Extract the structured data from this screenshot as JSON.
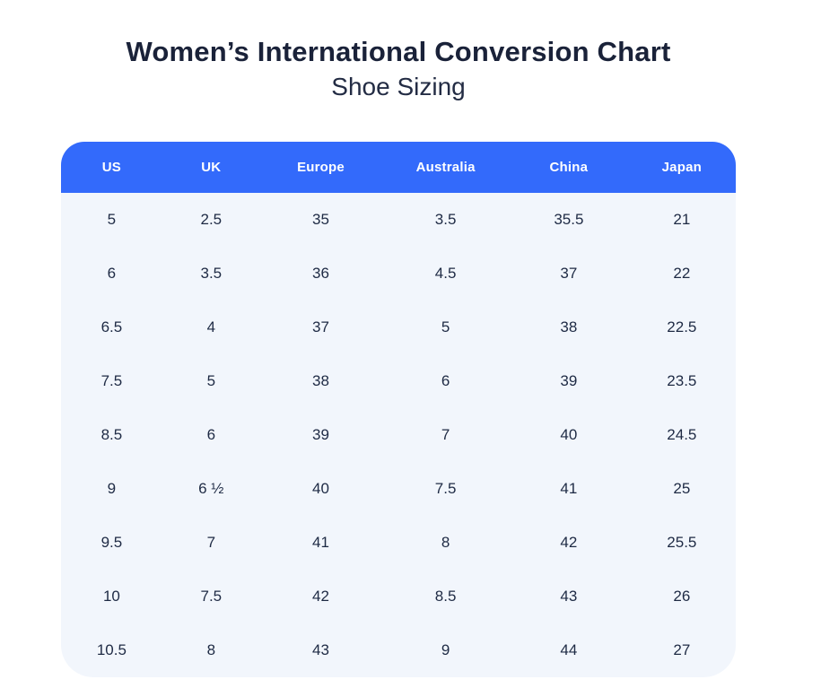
{
  "page": {
    "title": "Women’s International Conversion Chart",
    "subtitle": "Shoe Sizing"
  },
  "chart_data": {
    "type": "table",
    "title": "Women’s International Conversion Chart",
    "subtitle": "Shoe Sizing",
    "columns": [
      "US",
      "UK",
      "Europe",
      "Australia",
      "China",
      "Japan"
    ],
    "rows": [
      [
        "5",
        "2.5",
        "35",
        "3.5",
        "35.5",
        "21"
      ],
      [
        "6",
        "3.5",
        "36",
        "4.5",
        "37",
        "22"
      ],
      [
        "6.5",
        "4",
        "37",
        "5",
        "38",
        "22.5"
      ],
      [
        "7.5",
        "5",
        "38",
        "6",
        "39",
        "23.5"
      ],
      [
        "8.5",
        "6",
        "39",
        "7",
        "40",
        "24.5"
      ],
      [
        "9",
        "6 ½",
        "40",
        "7.5",
        "41",
        "25"
      ],
      [
        "9.5",
        "7",
        "41",
        "8",
        "42",
        "25.5"
      ],
      [
        "10",
        "7.5",
        "42",
        "8.5",
        "43",
        "26"
      ],
      [
        "10.5",
        "8",
        "43",
        "9",
        "44",
        "27"
      ]
    ],
    "colors": {
      "header_bg": "#336afb",
      "header_text": "#ffffff",
      "body_bg": "#f2f6fc",
      "cell_text": "#1e2a44",
      "title_text": "#1a2239"
    },
    "layout": {
      "grid": false,
      "header_position": "top"
    }
  }
}
